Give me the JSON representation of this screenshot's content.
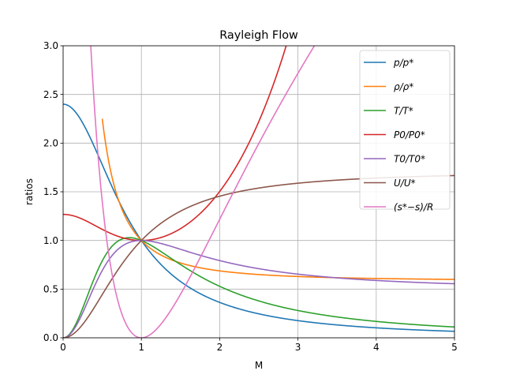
{
  "chart_data": {
    "type": "line",
    "title": "Rayleigh Flow",
    "xlabel": "M",
    "ylabel": "ratios",
    "xlim": [
      0,
      5
    ],
    "ylim": [
      0,
      3
    ],
    "grid": true,
    "legend_position": "top-right",
    "x_ticks": [
      "0",
      "1",
      "2",
      "3",
      "4",
      "5"
    ],
    "y_ticks": [
      "0.0",
      "0.5",
      "1.0",
      "1.5",
      "2.0",
      "2.5",
      "3.0"
    ],
    "gamma": 1.4,
    "series": [
      {
        "key": "p",
        "name": "p/p*",
        "color": "#1f77b4",
        "x": [
          0,
          0.5,
          1,
          1.5,
          2,
          3,
          4,
          5
        ],
        "y": [
          2.4,
          1.778,
          1.0,
          0.5783,
          0.3636,
          0.1765,
          0.1026,
          0.0667
        ]
      },
      {
        "key": "rho",
        "name": "ρ/ρ*",
        "color": "#ff7f0e",
        "x": [
          0.5,
          1,
          1.5,
          2,
          3,
          4,
          5
        ],
        "y": [
          2.25,
          1.0,
          0.7407,
          0.6875,
          0.6296,
          0.6094,
          0.6
        ]
      },
      {
        "key": "T",
        "name": "T/T*",
        "color": "#2ca02c",
        "x": [
          0,
          0.5,
          0.8,
          1,
          1.5,
          2,
          3,
          4,
          5
        ],
        "y": [
          0,
          0.7901,
          1.025,
          1.0,
          0.7525,
          0.5289,
          0.2803,
          0.1683,
          0.1111
        ]
      },
      {
        "key": "P0",
        "name": "P0/P0*",
        "color": "#d62728",
        "x": [
          0,
          0.5,
          1,
          1.5,
          2,
          2.5
        ],
        "y": [
          1.268,
          1.114,
          1.0,
          1.122,
          1.503,
          2.222
        ]
      },
      {
        "key": "T0",
        "name": "T0/T0*",
        "color": "#9467bd",
        "x": [
          0,
          0.5,
          1,
          1.5,
          2,
          3,
          4,
          5
        ],
        "y": [
          0,
          0.6914,
          1.0,
          0.9093,
          0.7934,
          0.654,
          0.5837,
          0.5444
        ]
      },
      {
        "key": "U",
        "name": "U/U*",
        "color": "#8c564b",
        "x": [
          0,
          0.5,
          1,
          1.5,
          2,
          3,
          4,
          5
        ],
        "y": [
          0,
          0.4444,
          1.0,
          1.35,
          1.4545,
          1.5882,
          1.641,
          1.6667
        ]
      },
      {
        "key": "s",
        "name": "(s*−s)/R",
        "color": "#e377c2",
        "x": [
          0.3,
          0.5,
          1,
          1.5,
          2,
          3
        ],
        "y": [
          4.38,
          1.7,
          0.0,
          0.4895,
          1.25,
          2.645
        ]
      }
    ]
  }
}
